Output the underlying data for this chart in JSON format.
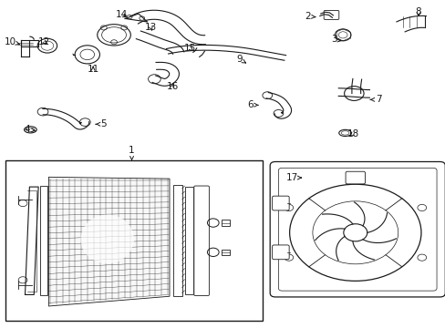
{
  "bg_color": "#ffffff",
  "line_color": "#1a1a1a",
  "fig_width": 4.89,
  "fig_height": 3.6,
  "dpi": 100,
  "label_positions": {
    "1": [
      0.295,
      0.535,
      0.295,
      0.495
    ],
    "2": [
      0.695,
      0.945,
      0.725,
      0.94
    ],
    "3": [
      0.755,
      0.875,
      0.775,
      0.87
    ],
    "4": [
      0.062,
      0.6,
      0.08,
      0.6
    ],
    "5": [
      0.235,
      0.62,
      0.21,
      0.62
    ],
    "6": [
      0.565,
      0.68,
      0.59,
      0.68
    ],
    "7": [
      0.845,
      0.695,
      0.82,
      0.695
    ],
    "8": [
      0.94,
      0.96,
      0.94,
      0.94
    ],
    "9": [
      0.54,
      0.815,
      0.555,
      0.8
    ],
    "10": [
      0.025,
      0.87,
      0.05,
      0.86
    ],
    "11": [
      0.21,
      0.785,
      0.21,
      0.81
    ],
    "12": [
      0.1,
      0.87,
      0.115,
      0.858
    ],
    "13": [
      0.34,
      0.915,
      0.345,
      0.895
    ],
    "14": [
      0.275,
      0.955,
      0.295,
      0.94
    ],
    "15": [
      0.43,
      0.85,
      0.44,
      0.835
    ],
    "16": [
      0.39,
      0.735,
      0.395,
      0.755
    ],
    "17": [
      0.66,
      0.455,
      0.685,
      0.455
    ],
    "18": [
      0.79,
      0.59,
      0.778,
      0.575
    ]
  }
}
